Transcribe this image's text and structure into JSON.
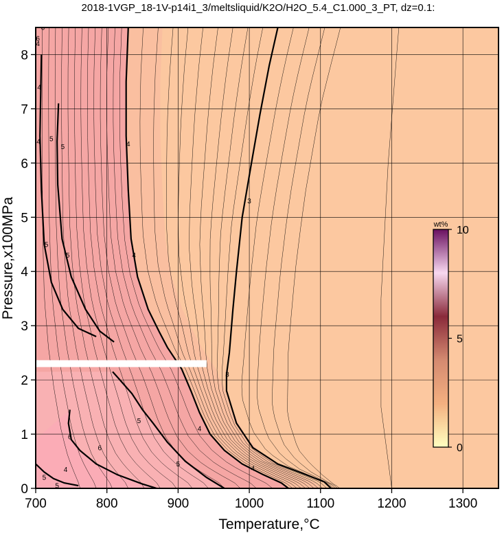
{
  "chart_data": {
    "type": "heatmap",
    "title": "2018-1VGP_18-1V-p14i1_3/meltsliquid/K2O/H2O_5.4_C1.000_3_PT, dz=0.1:",
    "xlabel": "Temperature,°C",
    "ylabel": "Pressure,x100MPa",
    "xlim": [
      700,
      1350
    ],
    "ylim": [
      0,
      8.5
    ],
    "x_ticks": [
      700,
      800,
      900,
      1000,
      1100,
      1200,
      1300
    ],
    "y_ticks": [
      0,
      1,
      2,
      3,
      4,
      5,
      6,
      7,
      8
    ],
    "grid": true,
    "contour_interval": 0.1,
    "colorbar": {
      "unit": "wt%",
      "min": 0,
      "max": 10,
      "ticks": [
        0,
        5,
        10
      ],
      "placement": "right-inside",
      "colors": [
        "#ffffc0",
        "#f4b080",
        "#d48a70",
        "#8a2a3a",
        "#f8d8f0",
        "#6a1060"
      ]
    },
    "background_colors": {
      "high_temperature_field": "#fcc8a0",
      "low_temperature_field": "#f5a4a4",
      "low_pressure_pocket": "#fab4b8"
    },
    "bold_contours": [
      {
        "label": "3",
        "points": [
          [
            1040,
            8.5
          ],
          [
            1028,
            7.8
          ],
          [
            1015,
            6.9
          ],
          [
            1003,
            6.0
          ],
          [
            990,
            5.0
          ],
          [
            982,
            4.0
          ],
          [
            977,
            3.3
          ],
          [
            972,
            2.5
          ],
          [
            968,
            2.1
          ],
          [
            968,
            1.8
          ],
          [
            982,
            1.2
          ],
          [
            1005,
            0.75
          ],
          [
            1040,
            0.45
          ],
          [
            1080,
            0.25
          ],
          [
            1105,
            0.12
          ],
          [
            1115,
            0.0
          ]
        ]
      },
      {
        "label": "4",
        "points": [
          [
            830,
            8.5
          ],
          [
            827,
            7.5
          ],
          [
            827,
            6.5
          ],
          [
            830,
            5.5
          ],
          [
            834,
            4.6
          ],
          [
            843,
            3.9
          ],
          [
            858,
            3.3
          ],
          [
            873,
            2.9
          ],
          [
            885,
            2.6
          ],
          [
            895,
            2.4
          ],
          [
            905,
            2.2
          ],
          [
            918,
            1.8
          ],
          [
            930,
            1.4
          ],
          [
            945,
            1.0
          ],
          [
            965,
            0.7
          ],
          [
            990,
            0.45
          ],
          [
            1020,
            0.25
          ],
          [
            1045,
            0.1
          ],
          [
            1055,
            0.0
          ]
        ]
      },
      {
        "label": "5",
        "points": [
          [
            732,
            7.1
          ],
          [
            730,
            6.4
          ],
          [
            731,
            5.6
          ],
          [
            737,
            4.6
          ],
          [
            750,
            3.9
          ],
          [
            770,
            3.3
          ],
          [
            790,
            2.9
          ],
          [
            810,
            2.7
          ]
        ]
      },
      {
        "label": "5",
        "points": [
          [
            808,
            2.15
          ],
          [
            815,
            2.05
          ],
          [
            835,
            1.75
          ],
          [
            850,
            1.45
          ],
          [
            865,
            1.2
          ],
          [
            885,
            0.85
          ],
          [
            910,
            0.5
          ],
          [
            940,
            0.2
          ],
          [
            965,
            0.0
          ]
        ]
      },
      {
        "label": "5",
        "points": [
          [
            708,
            8.0
          ],
          [
            706,
            6.5
          ],
          [
            708,
            5.5
          ],
          [
            712,
            4.5
          ],
          [
            722,
            3.8
          ],
          [
            738,
            3.3
          ],
          [
            760,
            2.95
          ],
          [
            785,
            2.8
          ]
        ]
      },
      {
        "label": "6",
        "points": [
          [
            748,
            1.45
          ],
          [
            746,
            1.2
          ],
          [
            750,
            0.9
          ],
          [
            762,
            0.7
          ],
          [
            785,
            0.45
          ],
          [
            815,
            0.25
          ],
          [
            850,
            0.08
          ],
          [
            870,
            0.0
          ]
        ]
      },
      {
        "label": "5",
        "points": [
          [
            700,
            0.45
          ],
          [
            712,
            0.3
          ],
          [
            725,
            0.18
          ],
          [
            740,
            0.1
          ],
          [
            760,
            0.05
          ]
        ]
      }
    ],
    "contour_labels": [
      {
        "text": "3",
        "x": 1000,
        "y": 5.3
      },
      {
        "text": "3",
        "x": 969,
        "y": 2.1
      },
      {
        "text": "4",
        "x": 742,
        "y": 0.35
      },
      {
        "text": "4",
        "x": 838,
        "y": 4.3
      },
      {
        "text": "4",
        "x": 830,
        "y": 6.35
      },
      {
        "text": "4",
        "x": 705,
        "y": 7.4
      },
      {
        "text": "4",
        "x": 704,
        "y": 6.4
      },
      {
        "text": "4",
        "x": 703,
        "y": 8.2
      },
      {
        "text": "4",
        "x": 930,
        "y": 1.1
      },
      {
        "text": "4",
        "x": 1005,
        "y": 0.37
      },
      {
        "text": "5",
        "x": 738,
        "y": 6.3
      },
      {
        "text": "5",
        "x": 745,
        "y": 4.3
      },
      {
        "text": "5",
        "x": 715,
        "y": 4.5
      },
      {
        "text": "5",
        "x": 722,
        "y": 6.45
      },
      {
        "text": "5",
        "x": 845,
        "y": 1.25
      },
      {
        "text": "5",
        "x": 900,
        "y": 0.45
      },
      {
        "text": "5",
        "x": 712,
        "y": 0.2
      },
      {
        "text": "5",
        "x": 730,
        "y": 0.05
      },
      {
        "text": "6",
        "x": 748,
        "y": 0.95
      },
      {
        "text": "6",
        "x": 790,
        "y": 0.75
      },
      {
        "text": "6",
        "x": 703,
        "y": 8.3
      },
      {
        "text": "6",
        "x": 710,
        "y": 8.5
      }
    ],
    "annotation_band": {
      "x_range": [
        700,
        940
      ],
      "y": 2.3,
      "color": "#ffffff"
    }
  }
}
